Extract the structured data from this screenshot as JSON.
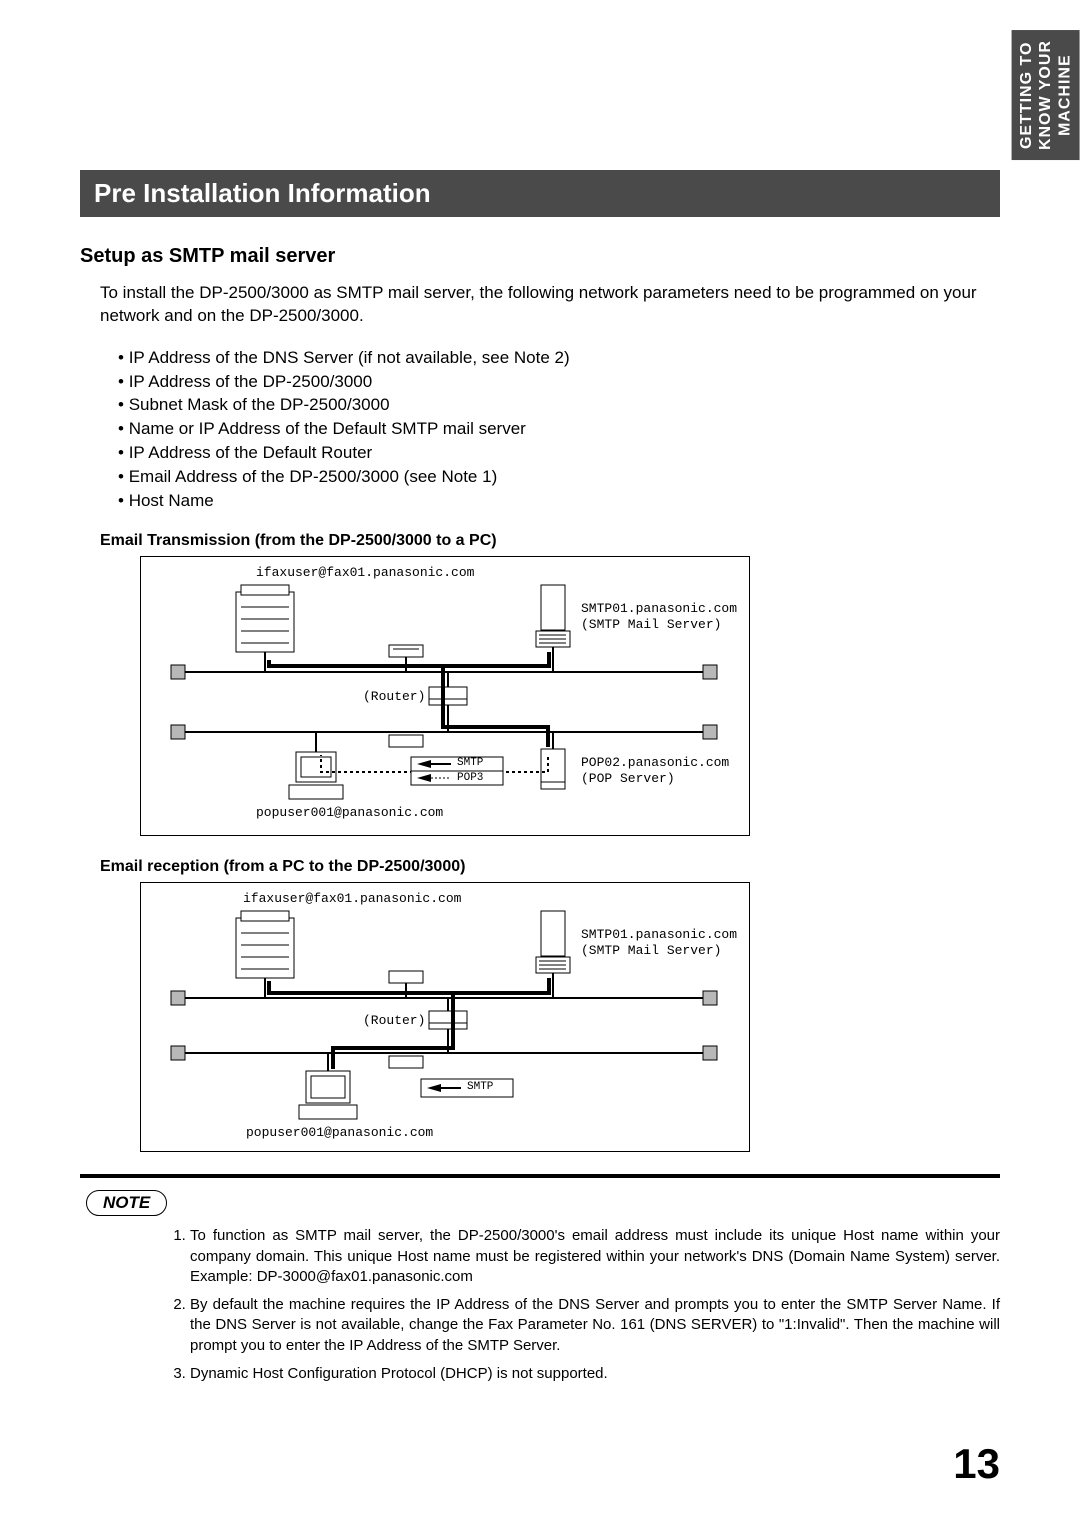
{
  "side_tab": "GETTING TO\nKNOW YOUR\nMACHINE",
  "title": "Pre Installation Information",
  "subhead": "Setup as SMTP mail server",
  "intro": "To install the DP-2500/3000 as SMTP mail server, the following network parameters need to be programmed on your network and on the DP-2500/3000.",
  "bullets": [
    "IP Address of the DNS Server (if not available, see Note 2)",
    "IP Address of the DP-2500/3000",
    "Subnet Mask of the DP-2500/3000",
    "Name or IP Address of the Default SMTP mail server",
    "IP Address of the Default Router",
    "Email Address of the DP-2500/3000 (see Note 1)",
    "Host Name"
  ],
  "diagram1": {
    "caption": "Email Transmission (from the DP-2500/3000 to a PC)",
    "ifax_email": "ifaxuser@fax01.panasonic.com",
    "smtp_label": "SMTP01.panasonic.com\n(SMTP Mail Server)",
    "router_label": "(Router)",
    "pop_label": "POP02.panasonic.com\n(POP Server)",
    "pc_email": "popuser001@panasonic.com",
    "smtp_arrow": "SMTP",
    "pop3_arrow": "POP3",
    "colors": {
      "border": "#000000",
      "fill_node": "#b8b8b8"
    }
  },
  "diagram2": {
    "caption": "Email reception (from a PC to the DP-2500/3000)",
    "ifax_email": "ifaxuser@fax01.panasonic.com",
    "smtp_label": "SMTP01.panasonic.com\n(SMTP Mail Server)",
    "router_label": "(Router)",
    "pc_email": "popuser001@panasonic.com",
    "smtp_arrow": "SMTP"
  },
  "note_label": "NOTE",
  "notes": [
    "To function as SMTP mail server, the DP-2500/3000's email address must include its unique Host name within your company domain.  This unique Host name must be registered within your network's DNS (Domain Name System) server. Example: DP-3000@fax01.panasonic.com",
    "By default the machine requires the IP Address of the DNS Server and prompts you to enter the SMTP Server Name.  If the DNS Server is not available, change the Fax Parameter No. 161 (DNS SERVER) to \"1:Invalid\". Then the machine will prompt you to enter the IP Address of the SMTP Server.",
    "Dynamic Host Configuration Protocol (DHCP) is not supported."
  ],
  "page_number": "13"
}
